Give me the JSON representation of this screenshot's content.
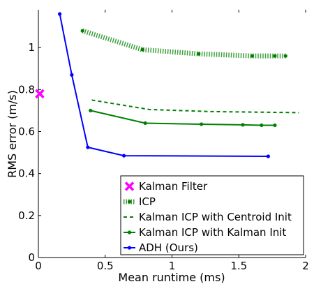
{
  "chart_data": {
    "type": "line",
    "xlabel": "Mean runtime (ms)",
    "ylabel": "RMS error (m/s)",
    "xlim": [
      0,
      2
    ],
    "ylim": [
      0,
      1.18
    ],
    "xticks": [
      0,
      0.5,
      1,
      1.5,
      2
    ],
    "xtick_labels": [
      "0",
      "0.5",
      "1",
      "1.5",
      "2"
    ],
    "yticks": [
      0,
      0.2,
      0.4,
      0.6,
      0.8,
      1
    ],
    "ytick_labels": [
      "0",
      "0.2",
      "0.4",
      "0.6",
      "0.8",
      "1"
    ],
    "grid": false,
    "legend_position": "bottom-right",
    "series": [
      {
        "name": "Kalman Filter",
        "style": "marker-x",
        "color": "#ff00ff",
        "x": [
          0.01
        ],
        "y": [
          0.78
        ]
      },
      {
        "name": "ICP",
        "style": "thick-dotted",
        "color": "#008000",
        "x": [
          0.33,
          0.78,
          1.2,
          1.6,
          1.77,
          1.85
        ],
        "y": [
          1.08,
          0.99,
          0.97,
          0.96,
          0.96,
          0.96
        ]
      },
      {
        "name": "Kalman ICP with Centroid Init",
        "style": "dashed",
        "color": "#008000",
        "x": [
          0.4,
          0.83,
          1.3,
          1.95
        ],
        "y": [
          0.75,
          0.705,
          0.695,
          0.69
        ]
      },
      {
        "name": "Kalman ICP with Kalman Init",
        "style": "solid-dot",
        "color": "#008000",
        "x": [
          0.39,
          0.8,
          1.22,
          1.53,
          1.67,
          1.77
        ],
        "y": [
          0.7,
          0.64,
          0.635,
          0.632,
          0.63,
          0.63
        ]
      },
      {
        "name": "ADH (Ours)",
        "style": "solid-dot",
        "color": "#0000ff",
        "x": [
          0.16,
          0.25,
          0.37,
          0.64,
          1.72
        ],
        "y": [
          1.16,
          0.87,
          0.525,
          0.485,
          0.482
        ]
      }
    ]
  }
}
